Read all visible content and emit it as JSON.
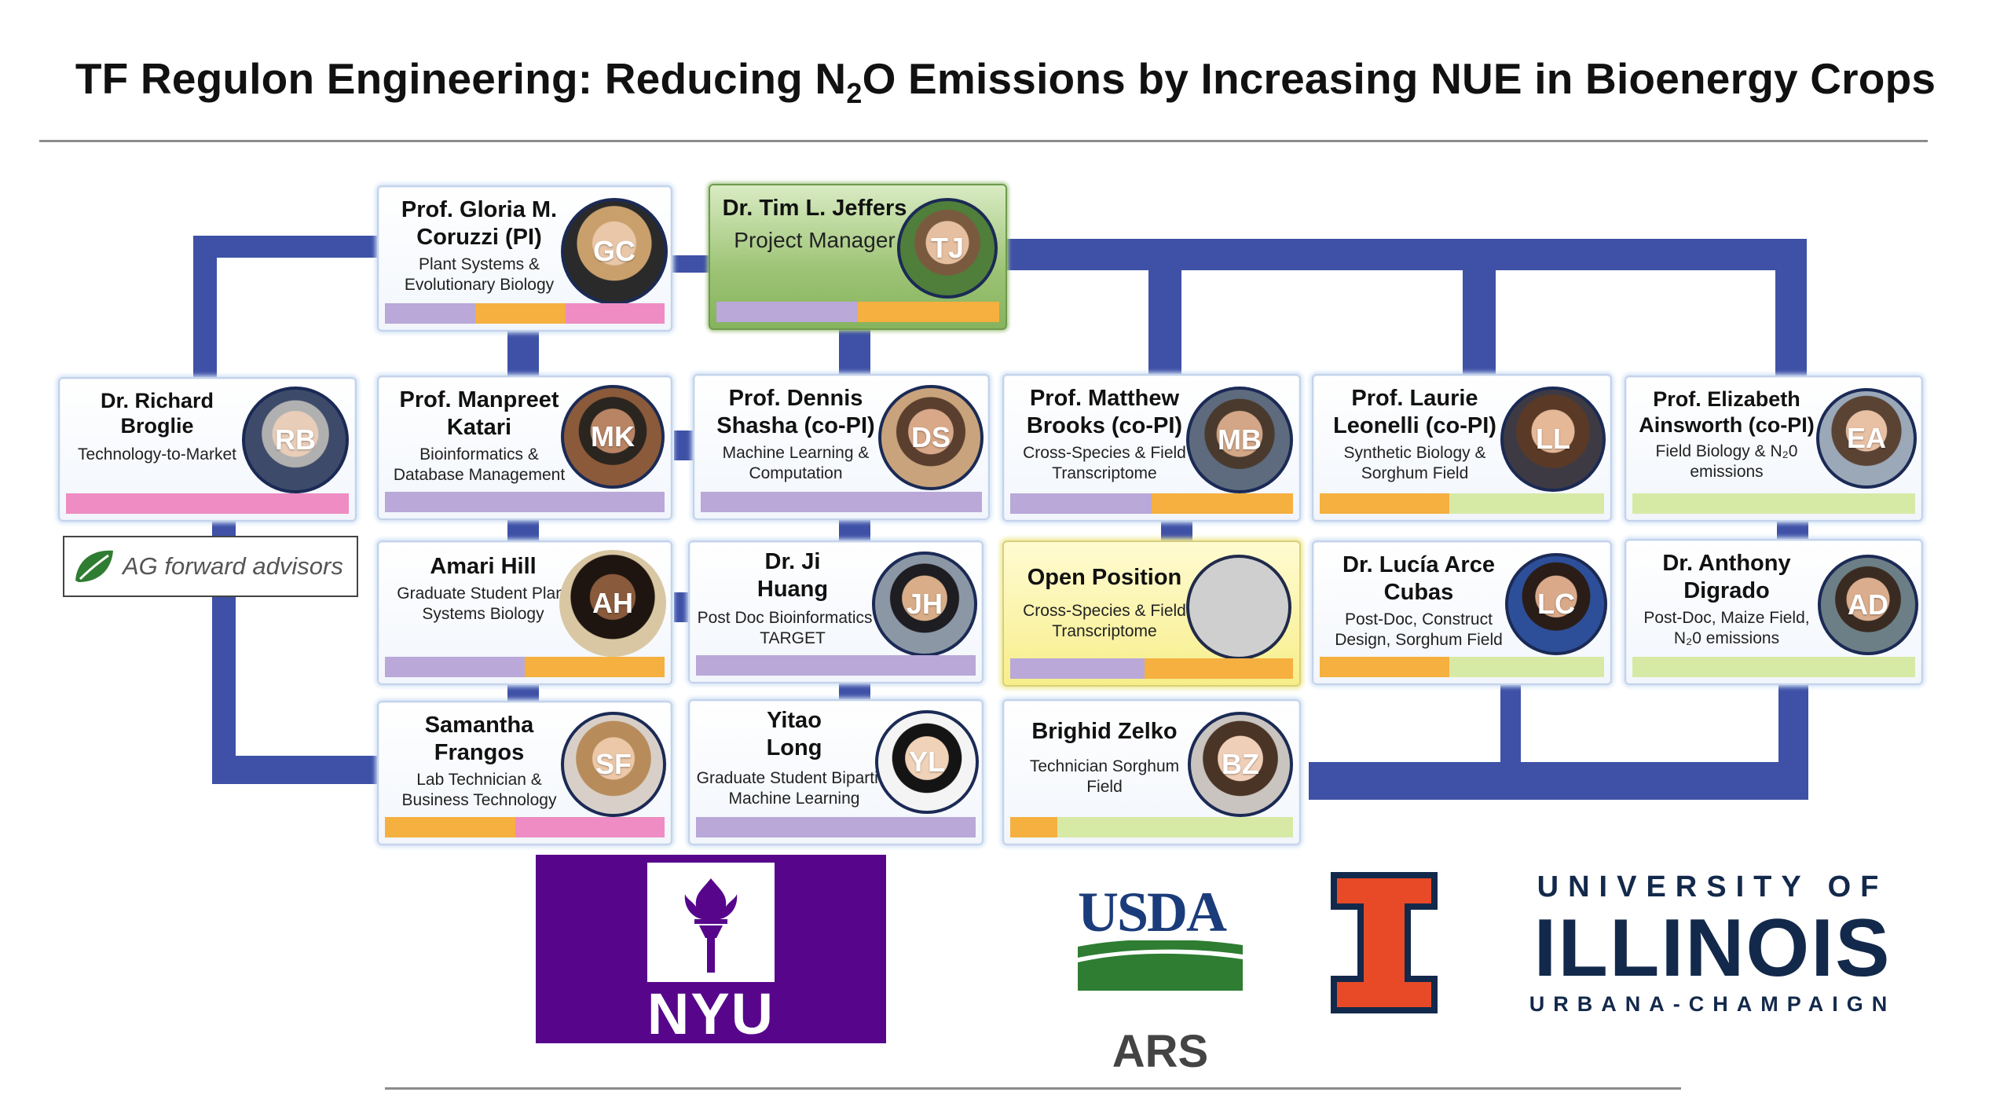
{
  "title": {
    "pre": "TF Regulon Engineering: Reducing N",
    "sub": "2",
    "post": "O Emissions by Increasing NUE in Bioenergy Crops"
  },
  "colors": {
    "connector": "#3f51a6",
    "purple": "#b9a8d8",
    "orange": "#f5b040",
    "pink": "#ee8cc3",
    "green": "#d6eaa6"
  },
  "people": [
    {
      "id": "coruzzi",
      "name": "Prof. Gloria M. Coruzzi  (PI)",
      "role": "Plant Systems & Evolutionary Biology",
      "bar": [
        "purple",
        "orange",
        "pink"
      ]
    },
    {
      "id": "jeffers",
      "name": "Dr. Tim L. Jeffers",
      "role": "Project Manager",
      "bar": [
        "purple",
        "orange"
      ]
    },
    {
      "id": "broglie",
      "name": "Dr. Richard Broglie",
      "role": "Technology-to-Market",
      "bar": [
        "pink"
      ]
    },
    {
      "id": "katari",
      "name": "Prof. Manpreet Katari",
      "role": "Bioinformatics & Database Management",
      "bar": [
        "purple"
      ]
    },
    {
      "id": "shasha",
      "name": "Prof. Dennis Shasha (co-PI)",
      "role": "Machine Learning & Computation",
      "bar": [
        "purple"
      ]
    },
    {
      "id": "brooks",
      "name": "Prof. Matthew Brooks (co-PI)",
      "role": "Cross-Species & Field Transcriptome",
      "bar": [
        "purple",
        "orange"
      ]
    },
    {
      "id": "leonelli",
      "name": "Prof. Laurie Leonelli (co-PI)",
      "role": "Synthetic Biology & Sorghum Field",
      "bar": [
        "orange",
        "green"
      ]
    },
    {
      "id": "ainsworth",
      "name": "Prof. Elizabeth Ainsworth (co-PI)",
      "role": "Field Biology & N₂0 emissions",
      "bar": [
        "green"
      ]
    },
    {
      "id": "hill",
      "name": "Amari Hill",
      "role": "Graduate Student Plant Systems Biology",
      "bar": [
        "purple",
        "orange"
      ]
    },
    {
      "id": "huang",
      "name": "Dr. Ji Huang",
      "role": "Post Doc Bioinformatics & TARGET",
      "bar": [
        "purple"
      ]
    },
    {
      "id": "open",
      "name": "Open Position",
      "role": "Cross-Species & Field Transcriptome",
      "bar": [
        "purple",
        "orange"
      ]
    },
    {
      "id": "cubas",
      "name": "Dr. Lucía Arce Cubas",
      "role": "Post-Doc, Construct Design, Sorghum Field",
      "bar": [
        "orange",
        "green"
      ]
    },
    {
      "id": "digrado",
      "name": "Dr. Anthony Digrado",
      "role": "Post-Doc, Maize Field, N₂0 emissions",
      "bar": [
        "green"
      ]
    },
    {
      "id": "frangos",
      "name": "Samantha Frangos",
      "role": "Lab Technician & Business Technology",
      "bar": [
        "orange",
        "pink"
      ]
    },
    {
      "id": "long",
      "name": "Yitao Long",
      "role": "Graduate Student Bipartite Machine Learning",
      "bar": [
        "purple"
      ]
    },
    {
      "id": "zelko",
      "name": "Brighid Zelko",
      "role": "Technician Sorghum Field",
      "bar": [
        "orange",
        "green"
      ]
    }
  ],
  "logos": {
    "ag": "AG forward advisors",
    "nyu": "NYU",
    "usda": "USDA",
    "ars": "ARS",
    "uiuc_top": "UNIVERSITY OF",
    "uiuc_main": "ILLINOIS",
    "uiuc_bottom": "URBANA-CHAMPAIGN"
  }
}
